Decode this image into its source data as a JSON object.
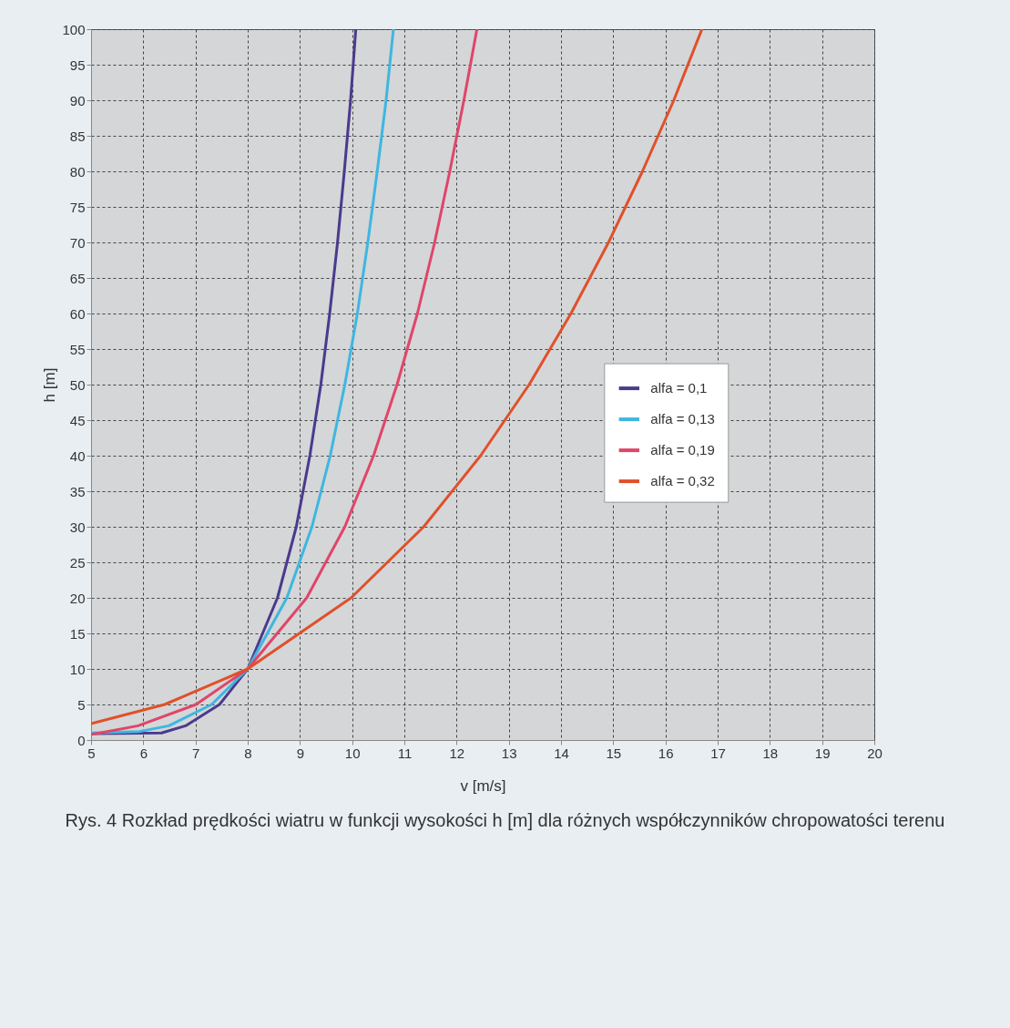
{
  "chart_data": {
    "type": "line",
    "xlabel": "v [m/s]",
    "ylabel": "h [m]",
    "xlim": [
      5,
      20
    ],
    "ylim": [
      0,
      100
    ],
    "xticks": [
      5,
      6,
      7,
      8,
      9,
      10,
      11,
      12,
      13,
      14,
      15,
      16,
      17,
      18,
      19,
      20
    ],
    "yticks": [
      0,
      5,
      10,
      15,
      20,
      25,
      30,
      35,
      40,
      45,
      50,
      55,
      60,
      65,
      70,
      75,
      80,
      85,
      90,
      95,
      100
    ],
    "grid": true,
    "legend": "right",
    "marker": "none",
    "line_style": "solid",
    "series": [
      {
        "name": "alfa = 0,1",
        "color": "#4b3a8c",
        "x": [
          5,
          6.35,
          6.81,
          7.46,
          8,
          8.57,
          8.93,
          9.19,
          9.4,
          9.57,
          9.72,
          9.85,
          9.97,
          10.07
        ],
        "values": [
          0.9,
          1,
          2,
          5,
          10,
          20,
          30,
          40,
          50,
          60,
          70,
          80,
          90,
          100
        ]
      },
      {
        "name": "alfa = 0,13",
        "color": "#3fb6e0",
        "x": [
          5,
          5.93,
          6.49,
          7.31,
          8,
          8.75,
          9.23,
          9.58,
          9.86,
          10.1,
          10.3,
          10.48,
          10.65,
          10.79
        ],
        "values": [
          1,
          1.2,
          2,
          5,
          10,
          20,
          30,
          40,
          50,
          60,
          70,
          80,
          90,
          100
        ]
      },
      {
        "name": "alfa = 0,19",
        "color": "#e0456a",
        "x": [
          5,
          5.17,
          5.9,
          7.01,
          8,
          9.13,
          9.86,
          10.41,
          10.86,
          11.25,
          11.58,
          11.87,
          12.14,
          12.39
        ],
        "values": [
          0.8,
          1,
          2,
          5,
          10,
          20,
          30,
          40,
          50,
          60,
          70,
          80,
          90,
          100
        ]
      },
      {
        "name": "alfa = 0,32",
        "color": "#e0502a",
        "x": [
          5,
          6.41,
          8,
          9.98,
          11.37,
          12.46,
          13.39,
          14.19,
          14.91,
          15.56,
          16.16,
          16.7
        ],
        "values": [
          2.3,
          5,
          10,
          20,
          30,
          40,
          50,
          60,
          70,
          80,
          90,
          100
        ]
      }
    ],
    "annotations": [
      "Rys. 4 Rozkład prędkości wiatru w funkcji wysokości h [m] dla różnych współczynników chropowatości terenu"
    ]
  }
}
